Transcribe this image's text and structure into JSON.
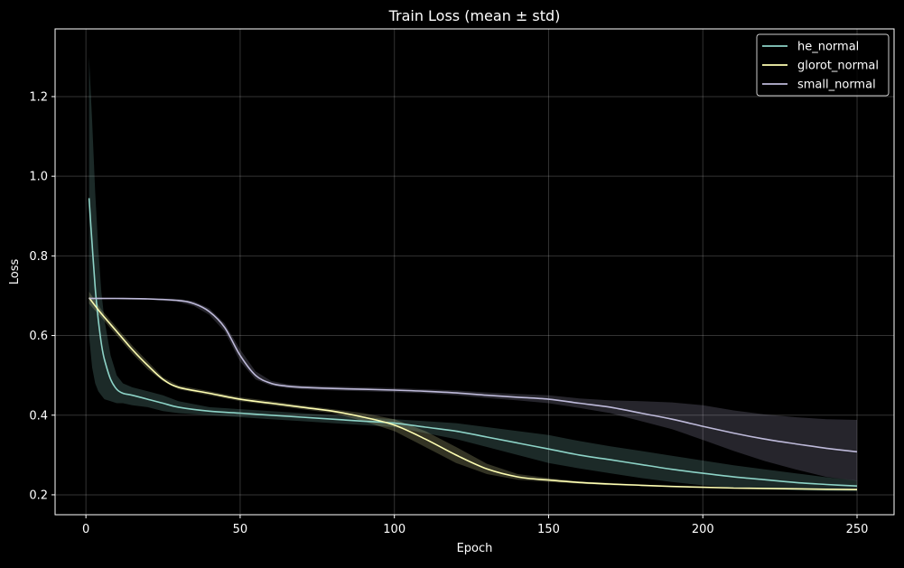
{
  "chart_data": {
    "type": "line",
    "title": "Train Loss (mean ± std)",
    "xlabel": "Epoch",
    "ylabel": "Loss",
    "xlim": [
      -10,
      262
    ],
    "ylim": [
      0.15,
      1.37
    ],
    "xticks": [
      0,
      50,
      100,
      150,
      200,
      250
    ],
    "yticks": [
      0.2,
      0.4,
      0.6,
      0.8,
      1.0,
      1.2
    ],
    "xtick_labels": [
      "0",
      "50",
      "100",
      "150",
      "200",
      "250"
    ],
    "ytick_labels": [
      "0.2",
      "0.4",
      "0.6",
      "0.8",
      "1.0",
      "1.2"
    ],
    "grid": true,
    "legend_position": "top-right",
    "background": "#000000",
    "series": [
      {
        "name": "he_normal",
        "color": "#8dd3c7",
        "x": [
          1,
          2,
          3,
          4,
          5,
          6,
          8,
          10,
          12,
          15,
          20,
          25,
          30,
          40,
          50,
          60,
          70,
          80,
          90,
          100,
          110,
          120,
          130,
          140,
          150,
          160,
          170,
          180,
          190,
          200,
          210,
          220,
          230,
          240,
          250
        ],
        "mean": [
          0.945,
          0.83,
          0.72,
          0.64,
          0.58,
          0.54,
          0.49,
          0.465,
          0.455,
          0.45,
          0.44,
          0.43,
          0.42,
          0.41,
          0.405,
          0.4,
          0.395,
          0.39,
          0.385,
          0.38,
          0.37,
          0.36,
          0.345,
          0.33,
          0.315,
          0.3,
          0.288,
          0.276,
          0.264,
          0.254,
          0.245,
          0.238,
          0.231,
          0.226,
          0.222
        ],
        "lower": [
          0.6,
          0.52,
          0.48,
          0.46,
          0.45,
          0.44,
          0.435,
          0.43,
          0.43,
          0.425,
          0.42,
          0.41,
          0.405,
          0.4,
          0.395,
          0.39,
          0.385,
          0.38,
          0.375,
          0.37,
          0.355,
          0.34,
          0.32,
          0.3,
          0.28,
          0.266,
          0.254,
          0.242,
          0.232,
          0.224,
          0.218,
          0.214,
          0.211,
          0.209,
          0.208
        ],
        "upper": [
          1.3,
          1.14,
          0.96,
          0.82,
          0.71,
          0.64,
          0.55,
          0.5,
          0.48,
          0.47,
          0.46,
          0.45,
          0.435,
          0.42,
          0.415,
          0.41,
          0.405,
          0.4,
          0.395,
          0.39,
          0.385,
          0.38,
          0.37,
          0.36,
          0.35,
          0.335,
          0.322,
          0.31,
          0.298,
          0.286,
          0.274,
          0.264,
          0.254,
          0.244,
          0.236
        ]
      },
      {
        "name": "glorot_normal",
        "color": "#ffffb3",
        "x": [
          1,
          5,
          10,
          15,
          20,
          25,
          30,
          40,
          50,
          60,
          70,
          80,
          90,
          100,
          110,
          120,
          130,
          140,
          150,
          160,
          170,
          180,
          190,
          200,
          210,
          220,
          230,
          240,
          250
        ],
        "mean": [
          0.695,
          0.655,
          0.61,
          0.565,
          0.525,
          0.49,
          0.47,
          0.455,
          0.44,
          0.43,
          0.42,
          0.41,
          0.395,
          0.375,
          0.34,
          0.3,
          0.265,
          0.245,
          0.237,
          0.231,
          0.227,
          0.224,
          0.221,
          0.219,
          0.217,
          0.216,
          0.215,
          0.214,
          0.213
        ],
        "lower": [
          0.68,
          0.645,
          0.6,
          0.555,
          0.515,
          0.485,
          0.465,
          0.45,
          0.435,
          0.425,
          0.415,
          0.405,
          0.385,
          0.36,
          0.32,
          0.28,
          0.252,
          0.238,
          0.232,
          0.228,
          0.224,
          0.222,
          0.22,
          0.218,
          0.216,
          0.215,
          0.214,
          0.213,
          0.212
        ],
        "upper": [
          0.71,
          0.665,
          0.62,
          0.575,
          0.535,
          0.495,
          0.475,
          0.46,
          0.445,
          0.435,
          0.425,
          0.415,
          0.405,
          0.39,
          0.36,
          0.32,
          0.278,
          0.252,
          0.242,
          0.234,
          0.23,
          0.226,
          0.222,
          0.22,
          0.218,
          0.217,
          0.216,
          0.215,
          0.214
        ]
      },
      {
        "name": "small_normal",
        "color": "#bebada",
        "x": [
          1,
          10,
          20,
          30,
          35,
          40,
          45,
          50,
          55,
          60,
          65,
          70,
          80,
          90,
          100,
          110,
          120,
          130,
          140,
          150,
          160,
          170,
          180,
          190,
          200,
          210,
          220,
          230,
          240,
          250
        ],
        "mean": [
          0.693,
          0.693,
          0.692,
          0.688,
          0.68,
          0.66,
          0.62,
          0.55,
          0.5,
          0.48,
          0.473,
          0.47,
          0.467,
          0.465,
          0.463,
          0.46,
          0.456,
          0.45,
          0.445,
          0.44,
          0.43,
          0.42,
          0.405,
          0.39,
          0.372,
          0.355,
          0.34,
          0.328,
          0.317,
          0.308
        ],
        "lower": [
          0.69,
          0.691,
          0.69,
          0.684,
          0.674,
          0.652,
          0.61,
          0.535,
          0.49,
          0.474,
          0.468,
          0.465,
          0.462,
          0.46,
          0.458,
          0.455,
          0.45,
          0.443,
          0.437,
          0.43,
          0.418,
          0.405,
          0.385,
          0.365,
          0.338,
          0.31,
          0.285,
          0.264,
          0.245,
          0.235
        ],
        "upper": [
          0.696,
          0.695,
          0.694,
          0.692,
          0.686,
          0.668,
          0.63,
          0.565,
          0.51,
          0.486,
          0.478,
          0.475,
          0.472,
          0.47,
          0.468,
          0.465,
          0.462,
          0.457,
          0.453,
          0.45,
          0.442,
          0.437,
          0.435,
          0.432,
          0.425,
          0.412,
          0.402,
          0.395,
          0.39,
          0.388
        ]
      }
    ]
  }
}
